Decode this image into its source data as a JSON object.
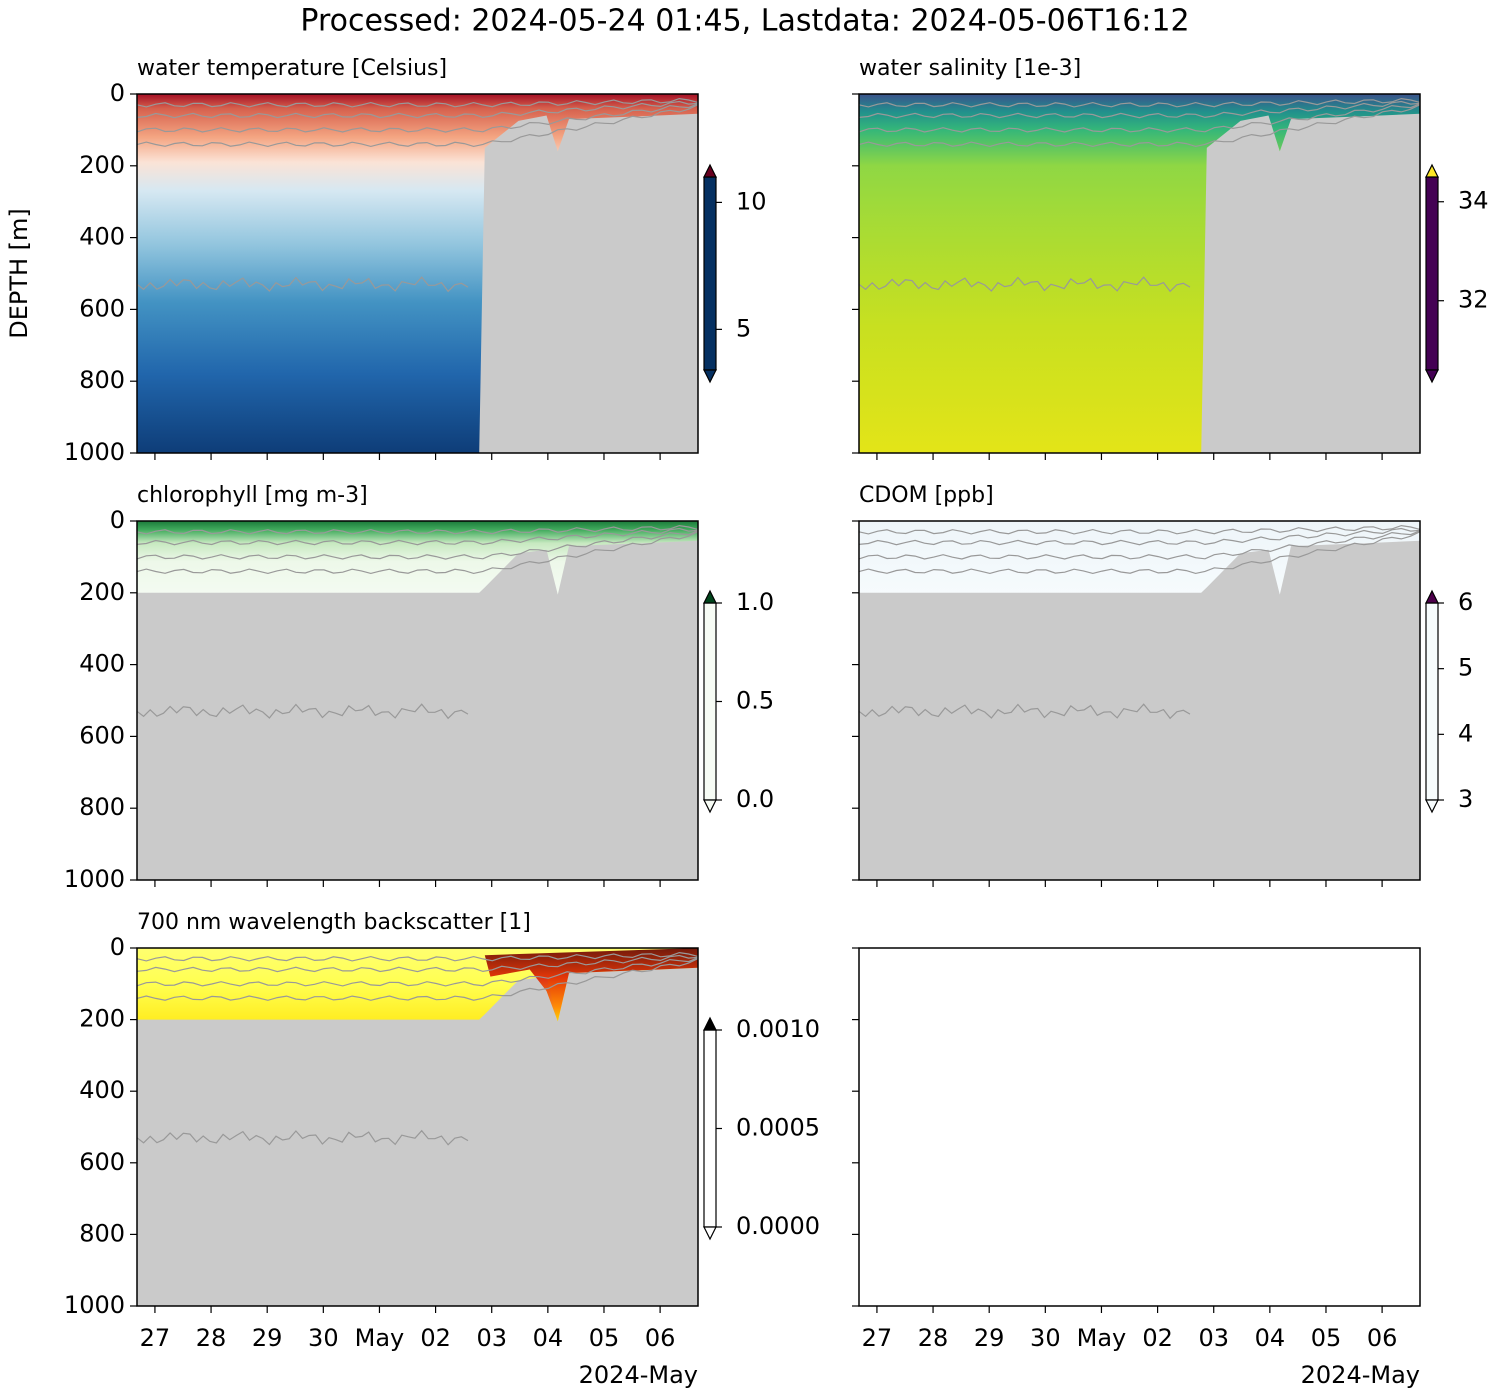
{
  "title": "Processed: 2024-05-24 01:45, Lastdata: 2024-05-06T16:12",
  "chart_data": [
    {
      "type": "heatmap",
      "title": "water temperature [Celsius]",
      "ylabel": "DEPTH [m]",
      "xlim": [
        "2024-04-26T16:20",
        "2024-05-06T16:12"
      ],
      "ylim": [
        1000,
        0
      ],
      "yticks": [
        0,
        200,
        400,
        600,
        800,
        1000
      ],
      "xticks": [
        "2024-04-27",
        "2024-04-28",
        "2024-04-29",
        "2024-04-30",
        "2024-05-01",
        "2024-05-02",
        "2024-05-03",
        "2024-05-04",
        "2024-05-05",
        "2024-05-06"
      ],
      "clim": [
        3.4,
        11.0
      ],
      "cticks": [
        10,
        5
      ],
      "colorbar_extend": "both",
      "colormap": [
        "#053061",
        "#2166ac",
        "#4393c3",
        "#92c5de",
        "#d1e5f0",
        "#f7f7f7",
        "#fddbc7",
        "#f4a582",
        "#d6604d",
        "#b2182b",
        "#67001f"
      ]
    },
    {
      "type": "heatmap",
      "title": "water salinity [1e-3]",
      "xlim": [
        "2024-04-26T16:20",
        "2024-05-06T16:12"
      ],
      "ylim": [
        1000,
        0
      ],
      "yticks": [
        0,
        200,
        400,
        600,
        800,
        1000
      ],
      "xticks": [
        "2024-04-27",
        "2024-04-28",
        "2024-04-29",
        "2024-04-30",
        "2024-05-01",
        "2024-05-02",
        "2024-05-03",
        "2024-05-04",
        "2024-05-05",
        "2024-05-06"
      ],
      "clim": [
        30.6,
        34.5
      ],
      "cticks": [
        34,
        32
      ],
      "colorbar_extend": "both",
      "colormap": [
        "#440154",
        "#482878",
        "#3e4989",
        "#31688e",
        "#26828e",
        "#1f9e89",
        "#35b779",
        "#6ece58",
        "#b5de2b",
        "#fde725"
      ]
    },
    {
      "type": "heatmap",
      "title": "chlorophyll [mg m-3]",
      "xlim": [
        "2024-04-26T16:20",
        "2024-05-06T16:12"
      ],
      "ylim": [
        1000,
        0
      ],
      "yticks": [
        0,
        200,
        400,
        600,
        800,
        1000
      ],
      "xticks": [
        "2024-04-27",
        "2024-04-28",
        "2024-04-29",
        "2024-04-30",
        "2024-05-01",
        "2024-05-02",
        "2024-05-03",
        "2024-05-04",
        "2024-05-05",
        "2024-05-06"
      ],
      "clim": [
        0,
        1
      ],
      "cticks": [
        {
          "value": 1,
          "label": "1.0"
        },
        0.5,
        {
          "value": 0,
          "label": "0.0"
        }
      ],
      "colorbar_extend": "both",
      "colormap": [
        "#f7fcf5",
        "#e5f5e0",
        "#c7e9c0",
        "#a1d99b",
        "#74c476",
        "#41ab5d",
        "#238b45",
        "#006d2c",
        "#00441b"
      ]
    },
    {
      "type": "heatmap",
      "title": "CDOM [ppb]",
      "xlim": [
        "2024-04-26T16:20",
        "2024-05-06T16:12"
      ],
      "ylim": [
        1000,
        0
      ],
      "yticks": [
        0,
        200,
        400,
        600,
        800,
        1000
      ],
      "xticks": [
        "2024-04-27",
        "2024-04-28",
        "2024-04-29",
        "2024-04-30",
        "2024-05-01",
        "2024-05-02",
        "2024-05-03",
        "2024-05-04",
        "2024-05-05",
        "2024-05-06"
      ],
      "clim": [
        3,
        6
      ],
      "cticks": [
        6,
        5,
        4,
        3
      ],
      "colorbar_extend": "both",
      "colormap": [
        "#f7fcfd",
        "#e0ecf4",
        "#bfd3e6",
        "#9ebcda",
        "#8c96c6",
        "#8c6bb1",
        "#88419d",
        "#810f7c",
        "#4d004b"
      ]
    },
    {
      "type": "heatmap",
      "title": "700 nm wavelength backscatter [1]",
      "xlim": [
        "2024-04-26T16:20",
        "2024-05-06T16:12"
      ],
      "ylim": [
        1000,
        0
      ],
      "yticks": [
        0,
        200,
        400,
        600,
        800,
        1000
      ],
      "xticks": [
        {
          "value": "2024-04-27",
          "label": "27"
        },
        {
          "value": "2024-04-28",
          "label": "28"
        },
        {
          "value": "2024-04-29",
          "label": "29"
        },
        {
          "value": "2024-04-30",
          "label": "30"
        },
        {
          "value": "2024-05-01",
          "label": "May"
        },
        {
          "value": "2024-05-02",
          "label": "02"
        },
        {
          "value": "2024-05-03",
          "label": "03"
        },
        {
          "value": "2024-05-04",
          "label": "04"
        },
        {
          "value": "2024-05-05",
          "label": "05"
        },
        {
          "value": "2024-05-06",
          "label": "06"
        }
      ],
      "x_offset_label": "2024-May",
      "clim": [
        0,
        0.001
      ],
      "cticks": [
        {
          "value": 0.001,
          "label": "0.0010"
        },
        {
          "value": 0.0005,
          "label": "0.0005"
        },
        {
          "value": 0,
          "label": "0.0000"
        }
      ],
      "colorbar_extend": "both",
      "colormap": [
        "#ffffff",
        "#ffff60",
        "#ffd000",
        "#ff8000",
        "#ff2000",
        "#c00000",
        "#600000",
        "#000000"
      ]
    },
    {
      "type": "empty",
      "xlim": [
        "2024-04-26T16:20",
        "2024-05-06T16:12"
      ],
      "ylim": [
        1000,
        0
      ],
      "yticks": [
        0,
        200,
        400,
        600,
        800,
        1000
      ],
      "xticks": [
        {
          "value": "2024-04-27",
          "label": "27"
        },
        {
          "value": "2024-04-28",
          "label": "28"
        },
        {
          "value": "2024-04-29",
          "label": "29"
        },
        {
          "value": "2024-04-30",
          "label": "30"
        },
        {
          "value": "2024-05-01",
          "label": "May"
        },
        {
          "value": "2024-05-02",
          "label": "02"
        },
        {
          "value": "2024-05-03",
          "label": "03"
        },
        {
          "value": "2024-05-04",
          "label": "04"
        },
        {
          "value": "2024-05-05",
          "label": "05"
        },
        {
          "value": "2024-05-06",
          "label": "06"
        }
      ],
      "x_offset_label": "2024-May"
    }
  ]
}
